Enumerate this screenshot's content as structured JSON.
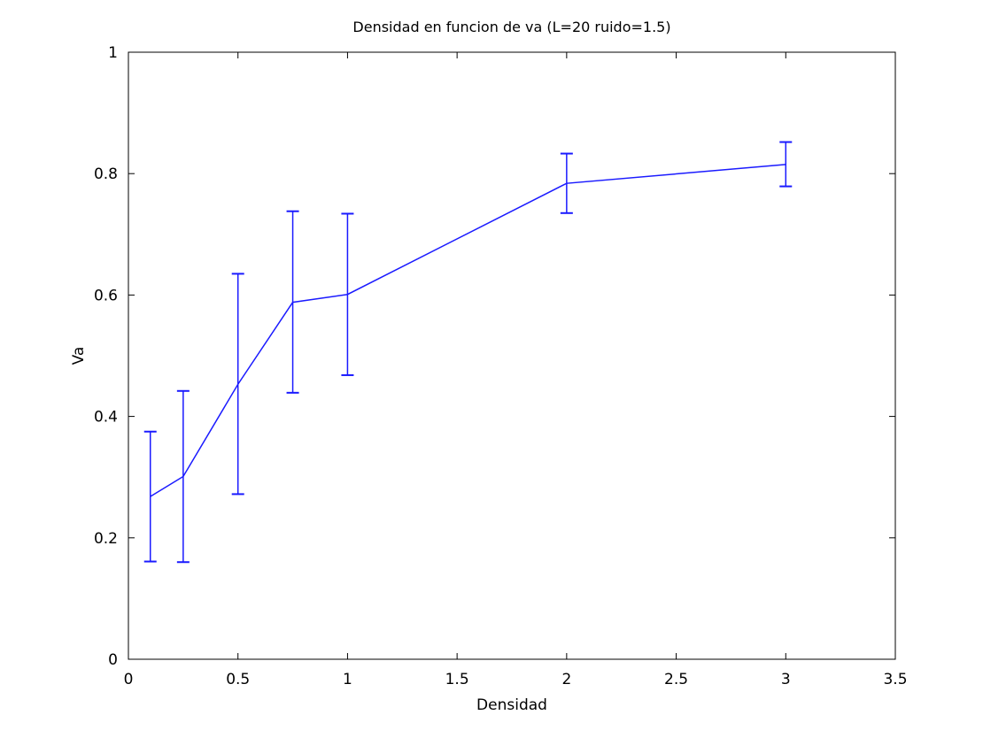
{
  "chart_data": {
    "type": "line",
    "title": "Densidad en funcion de va (L=20 ruido=1.5)",
    "xlabel": "Densidad",
    "ylabel": "Va",
    "xlim": [
      0,
      3.5
    ],
    "ylim": [
      0,
      1
    ],
    "xticks": [
      0,
      0.5,
      1,
      1.5,
      2,
      2.5,
      3,
      3.5
    ],
    "xtick_labels": [
      "0",
      "0.5",
      "1",
      "1.5",
      "2",
      "2.5",
      "3",
      "3.5"
    ],
    "yticks": [
      0,
      0.2,
      0.4,
      0.6,
      0.8,
      1
    ],
    "ytick_labels": [
      "0",
      "0.2",
      "0.4",
      "0.6",
      "0.8",
      "1"
    ],
    "grid": false,
    "series": [
      {
        "color": "#1a1aff",
        "x": [
          0.1,
          0.25,
          0.5,
          0.75,
          1,
          2,
          3
        ],
        "y": [
          0.268,
          0.301,
          0.453,
          0.588,
          0.601,
          0.784,
          0.815
        ],
        "err_low": [
          0.161,
          0.16,
          0.272,
          0.439,
          0.468,
          0.735,
          0.779
        ],
        "err_high": [
          0.375,
          0.442,
          0.635,
          0.738,
          0.734,
          0.833,
          0.852
        ]
      }
    ]
  }
}
